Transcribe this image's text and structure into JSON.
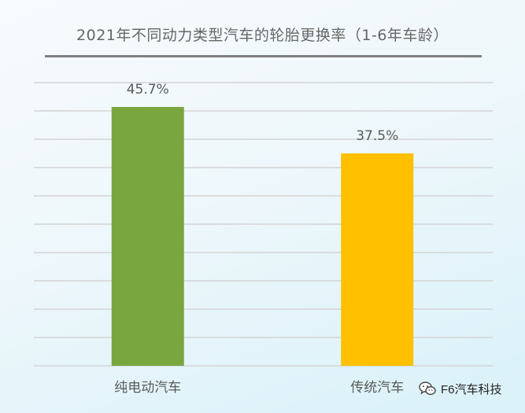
{
  "chart_data": {
    "type": "bar",
    "title": "2021年不同动力类型汽车的轮胎更换率（1-6年车龄）",
    "categories": [
      "纯电动汽车",
      "传统汽车"
    ],
    "values": [
      45.7,
      37.5
    ],
    "data_labels": [
      "45.7%",
      "37.5%"
    ],
    "colors": [
      "#7aa640",
      "#ffc000"
    ],
    "ylim": [
      0,
      50
    ],
    "grid": true,
    "gridline_count": 11,
    "xlabel": "",
    "ylabel": ""
  },
  "watermark": {
    "text": "F6汽车科技",
    "icon": "wechat-icon"
  }
}
